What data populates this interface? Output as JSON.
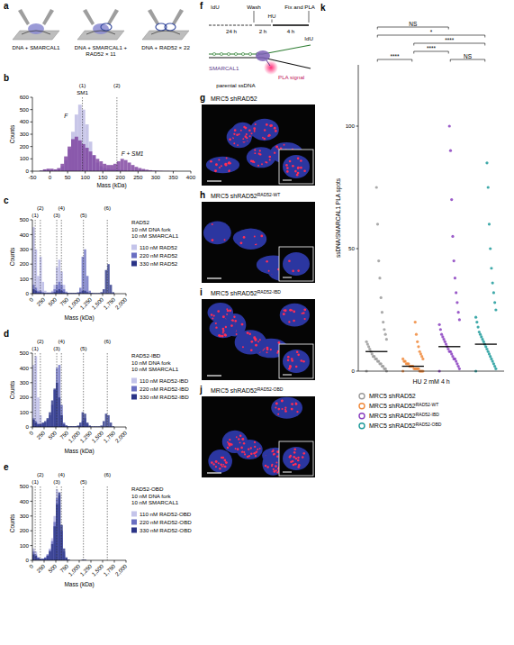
{
  "schematics": {
    "a": {
      "panel": "a",
      "labels": [
        "DNA + SMARCAL1",
        "DNA + SMARCAL1 + RAD52 × 11",
        "DNA + RAD52 × 22"
      ]
    },
    "f": {
      "panel": "f",
      "labels": {
        "idu_1": "IdU",
        "wash": "Wash",
        "hu": "HU",
        "fix": "Fix and PLA",
        "time_1": "24 h",
        "time_2": "2 h",
        "time_3": "4 h",
        "idu_2": "IdU",
        "protein": "SMARCAL1",
        "signal": "PLA signal",
        "strand": "parental ssDNA"
      }
    }
  },
  "chart_data": [
    {
      "panel": "b",
      "type": "histogram",
      "x_label": "Mass (kDa)",
      "y_label": "Counts",
      "bins": [
        -50,
        -40,
        -30,
        -20,
        -10,
        0,
        10,
        20,
        30,
        40,
        50,
        60,
        70,
        80,
        90,
        100,
        110,
        120,
        130,
        140,
        150,
        160,
        170,
        180,
        190,
        200,
        210,
        220,
        230,
        240,
        250,
        260,
        270,
        280,
        290,
        300,
        310,
        320,
        330,
        340,
        350,
        360,
        370,
        380,
        390,
        400
      ],
      "series": [
        {
          "name": "F",
          "color": "#c8c6e8",
          "values": [
            0,
            0,
            5,
            10,
            15,
            10,
            10,
            20,
            40,
            90,
            180,
            320,
            460,
            540,
            500,
            380,
            240,
            130,
            70,
            40,
            25,
            20,
            15,
            15,
            12,
            10,
            8,
            6,
            5,
            4,
            3,
            3,
            2,
            2,
            1,
            1,
            0,
            0,
            0,
            0,
            0,
            0,
            0,
            0,
            0
          ]
        },
        {
          "name": "F + SM1",
          "color": "#7a3d9c",
          "values": [
            0,
            0,
            5,
            15,
            20,
            20,
            15,
            25,
            60,
            120,
            200,
            260,
            280,
            250,
            220,
            190,
            160,
            130,
            100,
            80,
            60,
            50,
            50,
            60,
            80,
            100,
            90,
            70,
            50,
            35,
            25,
            18,
            12,
            8,
            5,
            4,
            3,
            2,
            2,
            1,
            1,
            0,
            0,
            0,
            0
          ]
        }
      ],
      "vlines": [
        {
          "label": "(1)",
          "value": 92,
          "text": "SM1"
        },
        {
          "label": "(2)",
          "value": 190
        }
      ],
      "xlim": [
        -50,
        400
      ],
      "xticks": [
        -50,
        0,
        50,
        100,
        150,
        200,
        250,
        300,
        350,
        400
      ],
      "ylim": [
        0,
        600
      ],
      "yticks": [
        0,
        100,
        200,
        300,
        400,
        500,
        600
      ]
    },
    {
      "panel": "c",
      "type": "histogram",
      "x_label": "Mass (kDa)",
      "y_label": "Counts",
      "legend": "right",
      "notes": [
        "RAD52",
        "10 nM DNA fork",
        "10 nM SMARCAL1"
      ],
      "bins": [
        0,
        50,
        100,
        150,
        200,
        250,
        300,
        350,
        400,
        450,
        500,
        550,
        600,
        650,
        700,
        750,
        800,
        850,
        900,
        950,
        1000,
        1050,
        1100,
        1150,
        1200,
        1250,
        1300,
        1350,
        1400,
        1450,
        1500,
        1550,
        1600,
        1650,
        1700,
        1750,
        1800,
        1850,
        1900,
        1950,
        2000
      ],
      "series": [
        {
          "name": "110 nM RAD52",
          "color": "#c4c4ea",
          "values": [
            450,
            300,
            120,
            250,
            80,
            20,
            10,
            10,
            20,
            60,
            180,
            230,
            150,
            60,
            15,
            0,
            0,
            0,
            0,
            0,
            0,
            0,
            0,
            0,
            0,
            0,
            0,
            0,
            0,
            0,
            0,
            0,
            0,
            0,
            0,
            0,
            0,
            0,
            0,
            0
          ]
        },
        {
          "name": "220 nM RAD52",
          "color": "#6a6fc2",
          "values": [
            60,
            40,
            20,
            20,
            10,
            5,
            5,
            5,
            10,
            30,
            60,
            80,
            60,
            30,
            10,
            5,
            5,
            5,
            5,
            10,
            40,
            250,
            300,
            120,
            20,
            5,
            0,
            0,
            0,
            0,
            0,
            0,
            0,
            0,
            0,
            0,
            0,
            0,
            0,
            0
          ]
        },
        {
          "name": "330 nM RAD52",
          "color": "#2b3487",
          "values": [
            30,
            20,
            10,
            10,
            5,
            5,
            5,
            5,
            5,
            10,
            20,
            30,
            20,
            10,
            5,
            5,
            5,
            5,
            5,
            5,
            10,
            20,
            20,
            10,
            5,
            5,
            5,
            5,
            5,
            10,
            30,
            160,
            200,
            60,
            10,
            0,
            0,
            0,
            0,
            0
          ]
        }
      ],
      "vlines": [
        {
          "label": "(1)",
          "value": 60
        },
        {
          "label": "(2)",
          "value": 170
        },
        {
          "label": "(3)",
          "value": 520
        },
        {
          "label": "(4)",
          "value": 620
        },
        {
          "label": "(5)",
          "value": 1090
        },
        {
          "label": "(6)",
          "value": 1600
        }
      ],
      "xlim": [
        0,
        2000
      ],
      "xticks": [
        0,
        250,
        500,
        750,
        {
          "value": 1000,
          "label": "1,000"
        },
        {
          "value": 1250,
          "label": "1,250"
        },
        {
          "value": 1500,
          "label": "1,500"
        },
        {
          "value": 1750,
          "label": "1,750"
        },
        {
          "value": 2000,
          "label": "2,000"
        }
      ],
      "ylim": [
        0,
        500
      ],
      "yticks": [
        0,
        100,
        200,
        300,
        400,
        500
      ]
    },
    {
      "panel": "d",
      "type": "histogram",
      "x_label": "Mass (kDa)",
      "y_label": "Counts",
      "legend": "right",
      "notes": [
        "RAD52-IBD",
        "10 nM DNA fork",
        "10 nM SMARCAL1"
      ],
      "bins": [
        0,
        50,
        100,
        150,
        200,
        250,
        300,
        350,
        400,
        450,
        500,
        550,
        600,
        650,
        700,
        750,
        800,
        850,
        900,
        950,
        1000,
        1050,
        1100,
        1150,
        1200,
        1250,
        1300,
        1350,
        1400,
        1450,
        1500,
        1550,
        1600,
        1650,
        1700,
        1750,
        1800,
        1850,
        1900,
        1950,
        2000
      ],
      "series": [
        {
          "name": "110 nM RAD52-IBD",
          "color": "#c4c4ea",
          "values": [
            420,
            480,
            200,
            80,
            30,
            10,
            5,
            5,
            5,
            10,
            20,
            20,
            10,
            5,
            0,
            0,
            0,
            0,
            0,
            0,
            0,
            0,
            0,
            0,
            0,
            0,
            0,
            0,
            0,
            0,
            0,
            0,
            0,
            0,
            0,
            0,
            0,
            0,
            0,
            0
          ]
        },
        {
          "name": "220 nM RAD52-IBD",
          "color": "#6a6fc2",
          "values": [
            60,
            40,
            20,
            20,
            20,
            30,
            50,
            80,
            150,
            250,
            400,
            420,
            150,
            30,
            10,
            5,
            5,
            5,
            5,
            5,
            10,
            40,
            60,
            20,
            5,
            0,
            0,
            0,
            0,
            0,
            0,
            0,
            0,
            0,
            0,
            0,
            0,
            0,
            0,
            0
          ]
        },
        {
          "name": "330 nM RAD52-IBD",
          "color": "#2b3487",
          "values": [
            50,
            30,
            20,
            20,
            30,
            40,
            60,
            100,
            180,
            260,
            300,
            200,
            80,
            20,
            10,
            5,
            5,
            5,
            5,
            10,
            30,
            100,
            90,
            30,
            10,
            5,
            5,
            5,
            5,
            10,
            40,
            90,
            80,
            30,
            5,
            0,
            0,
            0,
            0,
            0
          ]
        }
      ],
      "vlines": [
        {
          "label": "(1)",
          "value": 60
        },
        {
          "label": "(2)",
          "value": 170
        },
        {
          "label": "(3)",
          "value": 520
        },
        {
          "label": "(4)",
          "value": 620
        },
        {
          "label": "(5)",
          "value": 1090
        },
        {
          "label": "(6)",
          "value": 1600
        }
      ],
      "xlim": [
        0,
        2000
      ],
      "xticks": [
        0,
        250,
        500,
        750,
        {
          "value": 1000,
          "label": "1,000"
        },
        {
          "value": 1250,
          "label": "1,250"
        },
        {
          "value": 1500,
          "label": "1,500"
        },
        {
          "value": 1750,
          "label": "1,750"
        },
        {
          "value": 2000,
          "label": "2,000"
        }
      ],
      "ylim": [
        0,
        500
      ],
      "yticks": [
        0,
        100,
        200,
        300,
        400,
        500
      ]
    },
    {
      "panel": "e",
      "type": "histogram",
      "x_label": "Mass (kDa)",
      "y_label": "Counts",
      "legend": "right",
      "notes": [
        "RAD52-OBD",
        "10 nM DNA fork",
        "10 nM SMARCAL1"
      ],
      "bins": [
        0,
        50,
        100,
        150,
        200,
        250,
        300,
        350,
        400,
        450,
        500,
        550,
        600,
        650,
        700,
        750,
        800,
        850,
        900,
        950,
        1000,
        1050,
        1100,
        1150,
        1200,
        1250,
        1300,
        1350,
        1400,
        1450,
        1500,
        1550,
        1600,
        1650,
        1700,
        1750,
        1800,
        1850,
        1900,
        1950,
        2000
      ],
      "series": [
        {
          "name": "110 nM RAD52-OBD",
          "color": "#c4c4ea",
          "values": [
            80,
            60,
            20,
            10,
            10,
            20,
            40,
            80,
            150,
            300,
            480,
            380,
            150,
            40,
            10,
            0,
            0,
            0,
            0,
            0,
            0,
            0,
            0,
            0,
            0,
            0,
            0,
            0,
            0,
            0,
            0,
            0,
            0,
            0,
            0,
            0,
            0,
            0,
            0,
            0
          ]
        },
        {
          "name": "220 nM RAD52-OBD",
          "color": "#6a6fc2",
          "values": [
            60,
            40,
            20,
            10,
            10,
            20,
            40,
            70,
            130,
            260,
            420,
            440,
            200,
            60,
            15,
            5,
            0,
            0,
            0,
            0,
            0,
            0,
            0,
            0,
            0,
            0,
            0,
            0,
            0,
            0,
            0,
            0,
            0,
            0,
            0,
            0,
            0,
            0,
            0,
            0
          ]
        },
        {
          "name": "330 nM RAD52-OBD",
          "color": "#2b3487",
          "values": [
            40,
            30,
            15,
            10,
            10,
            15,
            30,
            60,
            110,
            230,
            380,
            460,
            240,
            80,
            20,
            5,
            0,
            0,
            0,
            0,
            0,
            5,
            5,
            0,
            0,
            0,
            0,
            0,
            0,
            0,
            0,
            0,
            0,
            0,
            0,
            0,
            0,
            0,
            0,
            0
          ]
        }
      ],
      "vlines": [
        {
          "label": "(1)",
          "value": 60
        },
        {
          "label": "(2)",
          "value": 170
        },
        {
          "label": "(3)",
          "value": 520
        },
        {
          "label": "(4)",
          "value": 620
        },
        {
          "label": "(5)",
          "value": 1090
        },
        {
          "label": "(6)",
          "value": 1600
        }
      ],
      "xlim": [
        0,
        2000
      ],
      "xticks": [
        0,
        250,
        500,
        750,
        {
          "value": 1000,
          "label": "1,000"
        },
        {
          "value": 1250,
          "label": "1,250"
        },
        {
          "value": 1500,
          "label": "1,500"
        },
        {
          "value": 1750,
          "label": "1,750"
        },
        {
          "value": 2000,
          "label": "2,000"
        }
      ],
      "ylim": [
        0,
        500
      ],
      "yticks": [
        0,
        100,
        200,
        300,
        400,
        500
      ]
    },
    {
      "panel": "k",
      "type": "strip",
      "x_label": "HU 2 mM 4 h",
      "y_label": "ssDNA/SMARCAL1 PLA spots",
      "legend": "bottom",
      "tick_labels": "y",
      "series": [
        {
          "name": "MRC5 shRAD52",
          "color": "#9b9b9b",
          "values": [
            0,
            0,
            1,
            1,
            2,
            2,
            3,
            3,
            4,
            4,
            5,
            5,
            6,
            6,
            7,
            8,
            9,
            10,
            11,
            12,
            13,
            15,
            17,
            20,
            24,
            30,
            38,
            45,
            60,
            75
          ]
        },
        {
          "name": "MRC5 shRAD52",
          "superscript": "RAD52-WT",
          "color": "#f08a3c",
          "values": [
            0,
            0,
            0,
            0,
            0,
            1,
            1,
            1,
            1,
            1,
            2,
            2,
            2,
            2,
            3,
            3,
            3,
            4,
            4,
            5,
            5,
            6,
            7,
            8,
            10,
            12,
            15,
            20
          ]
        },
        {
          "name": "MRC5 shRAD52",
          "superscript": "RAD52-IBD",
          "color": "#8a3fc0",
          "values": [
            0,
            1,
            2,
            3,
            4,
            5,
            5,
            6,
            7,
            8,
            8,
            9,
            10,
            11,
            12,
            13,
            14,
            15,
            17,
            19,
            21,
            24,
            28,
            32,
            38,
            45,
            55,
            70,
            90,
            100
          ]
        },
        {
          "name": "MRC5 shRAD52",
          "superscript": "RAD52-OBD",
          "color": "#1f9b9b",
          "values": [
            0,
            1,
            2,
            3,
            4,
            5,
            6,
            7,
            8,
            9,
            10,
            11,
            12,
            13,
            14,
            15,
            16,
            18,
            20,
            22,
            25,
            28,
            32,
            36,
            42,
            50,
            60,
            75,
            85
          ]
        }
      ],
      "means": [
        8,
        2,
        10,
        11
      ],
      "significance": [
        {
          "groups": [
            0,
            2
          ],
          "label": "NS"
        },
        {
          "groups": [
            0,
            3
          ],
          "label": "*"
        },
        {
          "groups": [
            1,
            3
          ],
          "label": "****"
        },
        {
          "groups": [
            1,
            2
          ],
          "label": "****"
        },
        {
          "groups": [
            0,
            1
          ],
          "label": "****"
        },
        {
          "groups": [
            2,
            3
          ],
          "label": "NS"
        }
      ],
      "ylim": [
        0,
        125
      ],
      "yticks": [
        0,
        50,
        100
      ]
    }
  ],
  "images": [
    {
      "panel": "g",
      "title": "MRC5 shRAD52"
    },
    {
      "panel": "h",
      "title": "MRC5 shRAD52",
      "superscript": "RAD52-WT"
    },
    {
      "panel": "i",
      "title": "MRC5 shRAD52",
      "superscript": "RAD52-IBD"
    },
    {
      "panel": "j",
      "title": "MRC5 shRAD52",
      "superscript": "RAD52-OBD"
    }
  ]
}
